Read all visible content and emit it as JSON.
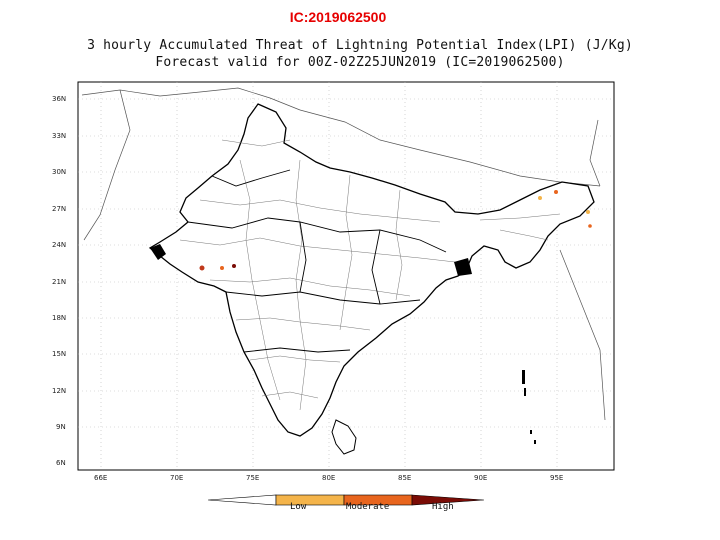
{
  "header": {
    "ic_text": "IC:2019062500"
  },
  "title": {
    "line1": "3 hourly Accumulated Threat of Lightning Potential Index(LPI) (J/Kg)",
    "line2": "Forecast valid for 00Z-02Z25JUN2019 (IC=2019062500)"
  },
  "axes": {
    "lat_labels": [
      "36N",
      "33N",
      "30N",
      "27N",
      "24N",
      "21N",
      "18N",
      "15N",
      "12N",
      "9N",
      "6N"
    ],
    "lon_labels": [
      "66E",
      "70E",
      "75E",
      "80E",
      "85E",
      "90E",
      "95E"
    ]
  },
  "legend": {
    "labels": [
      "Low",
      "Moderate",
      "High"
    ],
    "colors": {
      "low": "#f4b44a",
      "moderate": "#e8651e",
      "high": "#7a0c06"
    }
  }
}
